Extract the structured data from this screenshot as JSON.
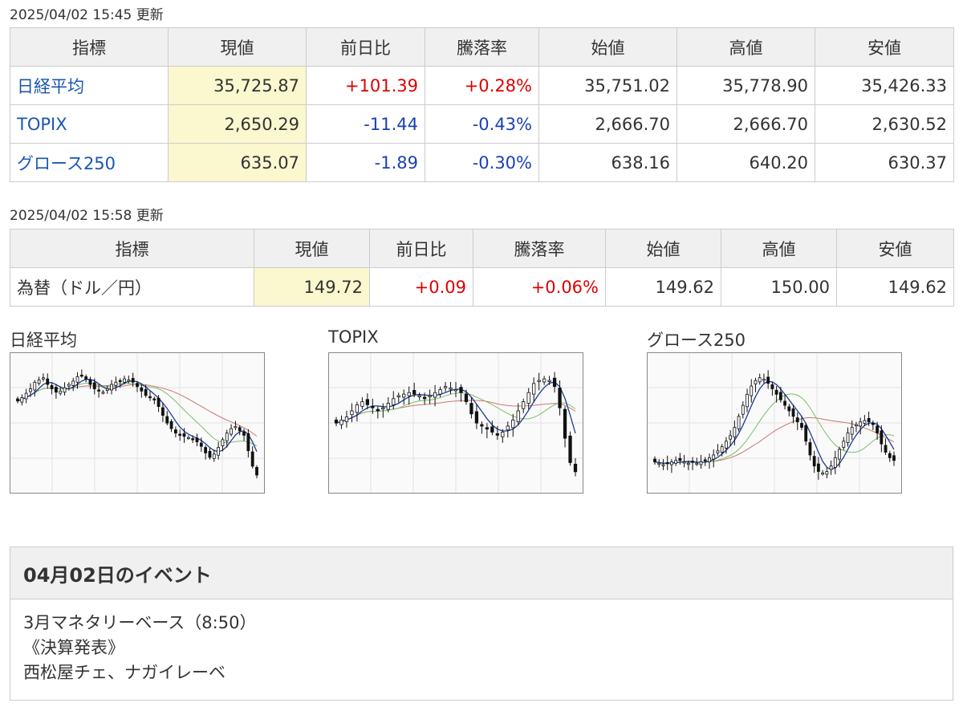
{
  "index_update": "2025/04/02 15:45 更新",
  "fx_update": "2025/04/02 15:58 更新",
  "headers": [
    "指標",
    "現値",
    "前日比",
    "騰落率",
    "始値",
    "高値",
    "安値"
  ],
  "indices": [
    {
      "name": "日経平均",
      "current": "35,725.87",
      "change": "+101.39",
      "rate": "+0.28%",
      "open": "35,751.02",
      "high": "35,778.90",
      "low": "35,426.33",
      "dir": "up"
    },
    {
      "name": "TOPIX",
      "current": "2,650.29",
      "change": "-11.44",
      "rate": "-0.43%",
      "open": "2,666.70",
      "high": "2,666.70",
      "low": "2,630.52",
      "dir": "down"
    },
    {
      "name": "グロース250",
      "current": "635.07",
      "change": "-1.89",
      "rate": "-0.30%",
      "open": "638.16",
      "high": "640.20",
      "low": "630.37",
      "dir": "down"
    }
  ],
  "fx": [
    {
      "name": "為替（ドル／円）",
      "current": "149.72",
      "change": "+0.09",
      "rate": "+0.06%",
      "open": "149.62",
      "high": "150.00",
      "low": "149.62",
      "dir": "up"
    }
  ],
  "colors": {
    "up": "#dd0000",
    "down": "#1a40b8",
    "link": "#1a56b0",
    "highlight": "#fbf7cf",
    "ma_short": "#1f3a93",
    "ma_mid": "#7cbf6a",
    "ma_long": "#c97870"
  },
  "charts": [
    {
      "title": "日経平均",
      "closes": [
        75,
        78,
        82,
        86,
        92,
        94,
        96,
        90,
        86,
        83,
        84,
        87,
        90,
        93,
        97,
        98,
        95,
        90,
        86,
        84,
        83,
        86,
        90,
        92,
        93,
        95,
        94,
        92,
        88,
        84,
        80,
        78,
        76,
        70,
        62,
        55,
        50,
        46,
        44,
        43,
        42,
        40,
        38,
        34,
        28,
        24,
        27,
        33,
        40,
        46,
        50,
        52,
        48,
        44,
        30,
        16,
        8
      ]
    },
    {
      "title": "TOPIX",
      "closes": [
        72,
        74,
        76,
        80,
        84,
        86,
        84,
        82,
        80,
        82,
        85,
        88,
        90,
        91,
        92,
        91,
        90,
        88,
        90,
        92,
        94,
        96,
        95,
        94,
        92,
        86,
        78,
        72,
        70,
        68,
        66,
        64,
        66,
        70,
        74,
        80,
        86,
        92,
        98,
        100,
        101,
        100,
        96,
        82,
        62,
        46,
        40
      ]
    },
    {
      "title": "グロース250",
      "closes": [
        55,
        54,
        53,
        54,
        55,
        56,
        56,
        55,
        54,
        55,
        54,
        55,
        56,
        58,
        60,
        63,
        66,
        70,
        74,
        80,
        88,
        96,
        104,
        110,
        114,
        116,
        115,
        112,
        108,
        104,
        100,
        96,
        92,
        88,
        84,
        80,
        70,
        60,
        52,
        48,
        47,
        48,
        52,
        58,
        64,
        70,
        76,
        80,
        82,
        84,
        85,
        84,
        82,
        76,
        68,
        62,
        58,
        56
      ]
    }
  ],
  "event": {
    "title": "04月02日のイベント",
    "lines": [
      "3月マネタリーベース（8:50）",
      "《決算発表》",
      "西松屋チェ、ナガイレーベ"
    ]
  }
}
